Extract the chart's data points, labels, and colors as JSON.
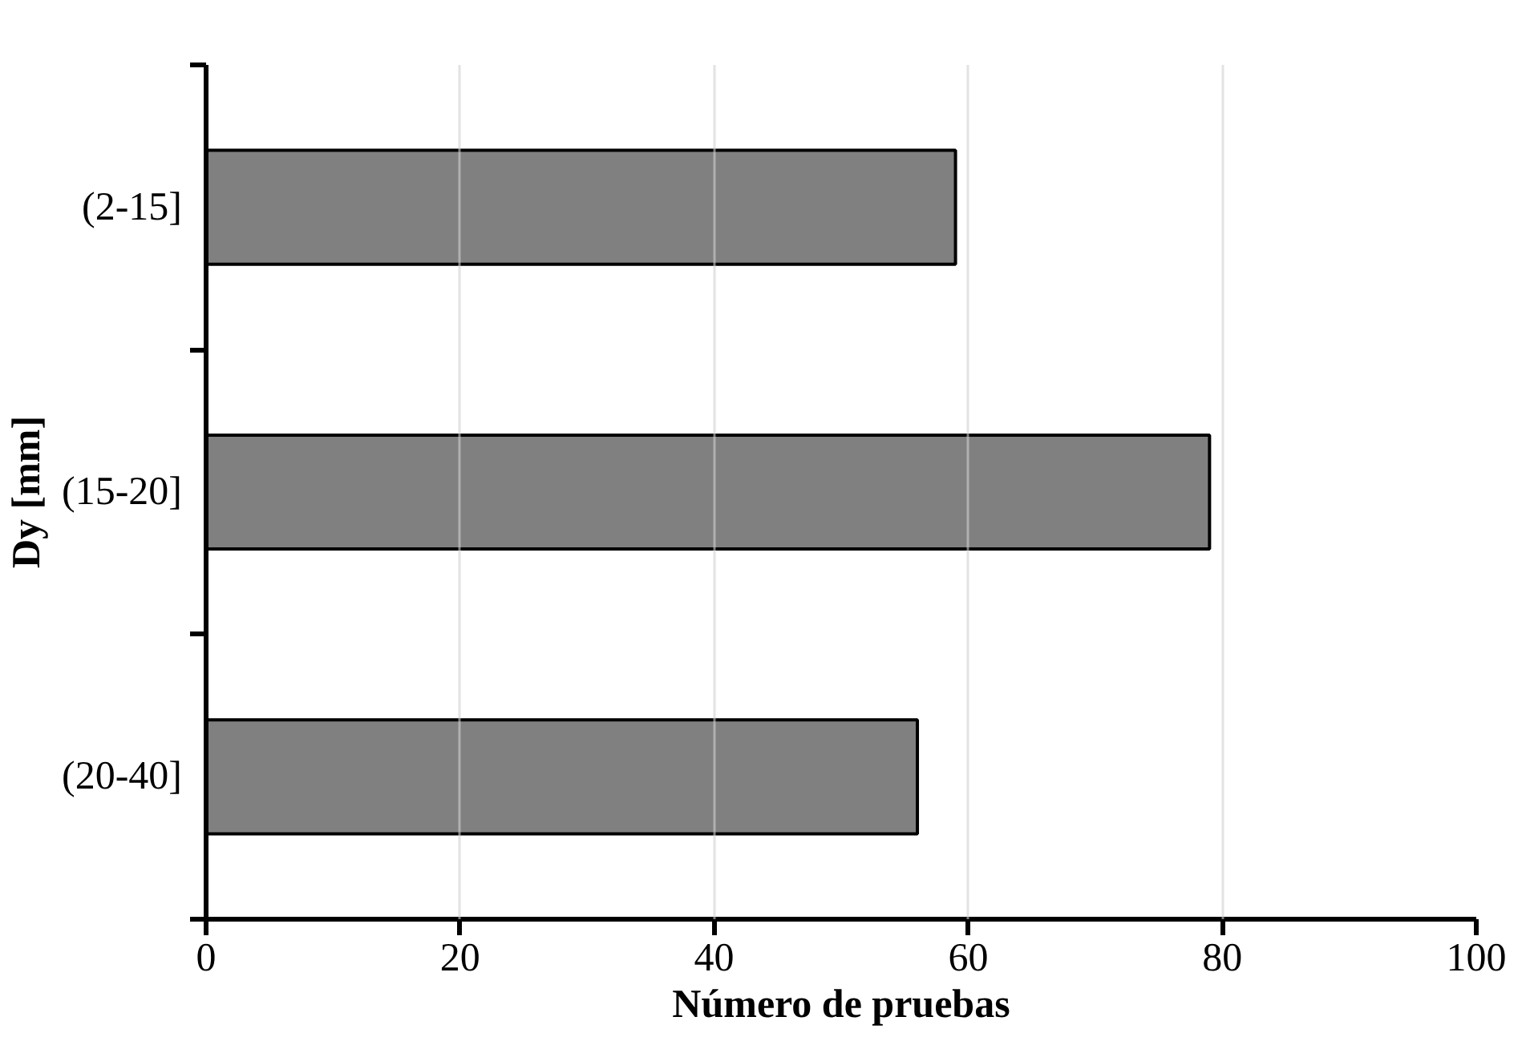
{
  "chart_data": {
    "type": "bar",
    "orientation": "horizontal",
    "categories": [
      "(2-15]",
      "(15-20]",
      "(20-40]"
    ],
    "values": [
      59,
      79,
      56
    ],
    "color": "#808080",
    "xlim": [
      0,
      100
    ],
    "xticks": [
      0,
      20,
      40,
      60,
      80,
      100
    ],
    "xlabel": "Número de pruebas",
    "ylabel": "Dy [mm]",
    "grid": "x"
  }
}
